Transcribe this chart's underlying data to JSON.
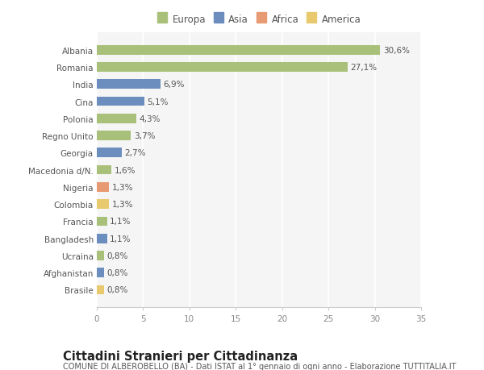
{
  "countries": [
    "Albania",
    "Romania",
    "India",
    "Cina",
    "Polonia",
    "Regno Unito",
    "Georgia",
    "Macedonia d/N.",
    "Nigeria",
    "Colombia",
    "Francia",
    "Bangladesh",
    "Ucraina",
    "Afghanistan",
    "Brasile"
  ],
  "values": [
    30.6,
    27.1,
    6.9,
    5.1,
    4.3,
    3.7,
    2.7,
    1.6,
    1.3,
    1.3,
    1.1,
    1.1,
    0.8,
    0.8,
    0.8
  ],
  "labels": [
    "30,6%",
    "27,1%",
    "6,9%",
    "5,1%",
    "4,3%",
    "3,7%",
    "2,7%",
    "1,6%",
    "1,3%",
    "1,3%",
    "1,1%",
    "1,1%",
    "0,8%",
    "0,8%",
    "0,8%"
  ],
  "colors": [
    "#a8c07a",
    "#a8c07a",
    "#6b8ebf",
    "#6b8ebf",
    "#a8c07a",
    "#a8c07a",
    "#6b8ebf",
    "#a8c07a",
    "#e89a72",
    "#e8c96e",
    "#a8c07a",
    "#6b8ebf",
    "#a8c07a",
    "#6b8ebf",
    "#e8c96e"
  ],
  "legend_items": [
    {
      "label": "Europa",
      "color": "#a8c07a"
    },
    {
      "label": "Asia",
      "color": "#6b8ebf"
    },
    {
      "label": "Africa",
      "color": "#e89a72"
    },
    {
      "label": "America",
      "color": "#e8c96e"
    }
  ],
  "xlim": [
    0,
    35
  ],
  "xticks": [
    0,
    5,
    10,
    15,
    20,
    25,
    30,
    35
  ],
  "title": "Cittadini Stranieri per Cittadinanza",
  "subtitle": "COMUNE DI ALBEROBELLO (BA) - Dati ISTAT al 1° gennaio di ogni anno - Elaborazione TUTTITALIA.IT",
  "bg_color": "#ffffff",
  "plot_bg_color": "#f5f5f5",
  "grid_color": "#ffffff",
  "bar_height": 0.55,
  "label_fontsize": 7.5,
  "tick_fontsize": 7.5,
  "title_fontsize": 10.5,
  "subtitle_fontsize": 7.0,
  "legend_fontsize": 8.5
}
